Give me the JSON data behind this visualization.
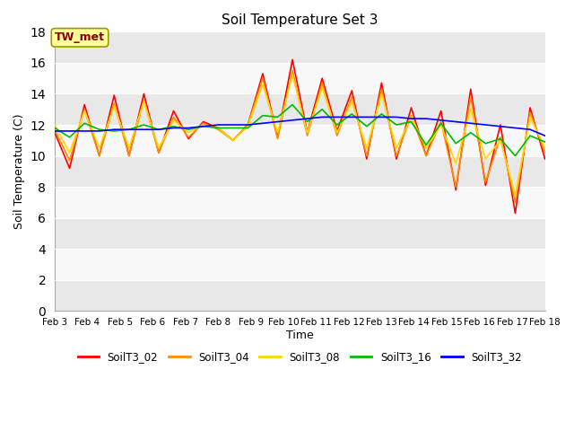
{
  "title": "Soil Temperature Set 3",
  "xlabel": "Time",
  "ylabel": "Soil Temperature (C)",
  "xlim": [
    0,
    15
  ],
  "ylim": [
    0,
    18
  ],
  "yticks": [
    0,
    2,
    4,
    6,
    8,
    10,
    12,
    14,
    16,
    18
  ],
  "xtick_labels": [
    "Feb 3",
    "Feb 4",
    "Feb 5",
    "Feb 6",
    "Feb 7",
    "Feb 8",
    "Feb 9",
    "Feb 10",
    "Feb 11",
    "Feb 12",
    "Feb 13",
    "Feb 14",
    "Feb 15",
    "Feb 16",
    "Feb 17",
    "Feb 18"
  ],
  "annotation_text": "TW_met",
  "annotation_color": "#8B0000",
  "annotation_bg": "#FFFF99",
  "annotation_border": "#999900",
  "colors": {
    "SoilT3_02": "#FF0000",
    "SoilT3_04": "#FF8C00",
    "SoilT3_08": "#FFD700",
    "SoilT3_16": "#00BB00",
    "SoilT3_32": "#0000FF"
  },
  "linewidth": 1.2,
  "fig_bg": "#FFFFFF",
  "plot_bg_light": "#FFFFFF",
  "plot_bg_dark": "#E8E8E8",
  "series": {
    "SoilT3_02": [
      11.5,
      9.2,
      13.3,
      10.0,
      13.9,
      10.0,
      14.0,
      10.2,
      12.9,
      11.1,
      12.2,
      11.8,
      11.0,
      12.0,
      15.3,
      11.2,
      16.2,
      11.5,
      15.0,
      11.6,
      14.2,
      9.8,
      14.7,
      9.8,
      13.1,
      10.0,
      12.9,
      7.8,
      14.3,
      8.1,
      12.0,
      6.3,
      13.1,
      9.8
    ],
    "SoilT3_04": [
      11.7,
      9.7,
      13.0,
      10.0,
      13.4,
      10.0,
      13.6,
      10.2,
      12.5,
      11.2,
      12.1,
      11.7,
      11.0,
      12.0,
      15.0,
      11.1,
      15.5,
      11.3,
      14.7,
      11.3,
      13.8,
      10.0,
      14.3,
      10.0,
      12.6,
      10.0,
      12.2,
      8.0,
      13.8,
      8.3,
      11.2,
      7.0,
      12.8,
      10.2
    ],
    "SoilT3_08": [
      12.0,
      10.2,
      12.9,
      10.5,
      13.2,
      10.5,
      13.5,
      10.5,
      12.3,
      11.5,
      12.0,
      11.8,
      11.0,
      11.9,
      14.6,
      11.5,
      15.2,
      11.5,
      14.4,
      11.5,
      13.5,
      10.5,
      14.0,
      10.5,
      12.5,
      10.5,
      12.0,
      9.5,
      13.0,
      9.8,
      11.0,
      7.5,
      12.5,
      10.5
    ],
    "SoilT3_16": [
      11.8,
      11.2,
      12.1,
      11.7,
      11.6,
      11.7,
      12.0,
      11.7,
      11.9,
      11.7,
      11.9,
      11.8,
      11.8,
      11.8,
      12.6,
      12.5,
      13.3,
      12.2,
      13.0,
      12.0,
      12.7,
      11.9,
      12.7,
      12.0,
      12.2,
      10.7,
      12.1,
      10.8,
      11.5,
      10.8,
      11.1,
      10.0,
      11.3,
      10.9
    ],
    "SoilT3_32": [
      11.6,
      11.6,
      11.6,
      11.6,
      11.7,
      11.7,
      11.7,
      11.7,
      11.8,
      11.8,
      11.9,
      12.0,
      12.0,
      12.0,
      12.1,
      12.2,
      12.3,
      12.4,
      12.5,
      12.5,
      12.5,
      12.5,
      12.5,
      12.5,
      12.4,
      12.4,
      12.3,
      12.2,
      12.1,
      12.0,
      11.9,
      11.8,
      11.7,
      11.3
    ]
  }
}
